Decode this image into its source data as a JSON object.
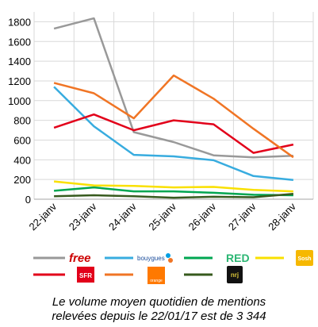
{
  "chart_data": {
    "type": "line",
    "categories": [
      "22-janv",
      "23-janv",
      "24-janv",
      "25-janv",
      "26-janv",
      "27-janv",
      "28-janv"
    ],
    "ylim": [
      0,
      1900
    ],
    "yticks": [
      0,
      200,
      400,
      600,
      800,
      1000,
      1200,
      1400,
      1600,
      1800
    ],
    "grid": true,
    "legend_position": "bottom",
    "series": [
      {
        "name": "Free",
        "color": "#999999",
        "values": [
          1730,
          1835,
          680,
          580,
          445,
          425,
          440
        ]
      },
      {
        "name": "Bouygues Telecom",
        "color": "#38ACDF",
        "values": [
          1140,
          740,
          450,
          435,
          395,
          235,
          195
        ]
      },
      {
        "name": "RED",
        "color": "#00A651",
        "values": [
          85,
          120,
          80,
          80,
          65,
          45,
          40
        ]
      },
      {
        "name": "Sosh",
        "color": "#F9E000",
        "values": [
          180,
          140,
          135,
          120,
          125,
          95,
          80
        ]
      },
      {
        "name": "SFR",
        "color": "#E2001A",
        "values": [
          725,
          860,
          700,
          800,
          760,
          470,
          555
        ]
      },
      {
        "name": "Orange",
        "color": "#F07525",
        "values": [
          1180,
          1075,
          820,
          1255,
          1020,
          715,
          425
        ]
      },
      {
        "name": "Nrj mobile",
        "color": "#375A1E",
        "values": [
          30,
          40,
          30,
          15,
          25,
          20,
          55
        ]
      }
    ]
  },
  "legend": {
    "free_text": "free",
    "bouygues_text": "bouygues",
    "red_text": "RED",
    "sosh_text": "Sosh",
    "sfr_text": "SFR",
    "orange_text": "orange",
    "nrj_text": "nrj"
  },
  "caption": {
    "line1": "Le volume moyen quotidien de mentions",
    "line2": "relevées depuis le 22/01/17 est de 3 344"
  }
}
